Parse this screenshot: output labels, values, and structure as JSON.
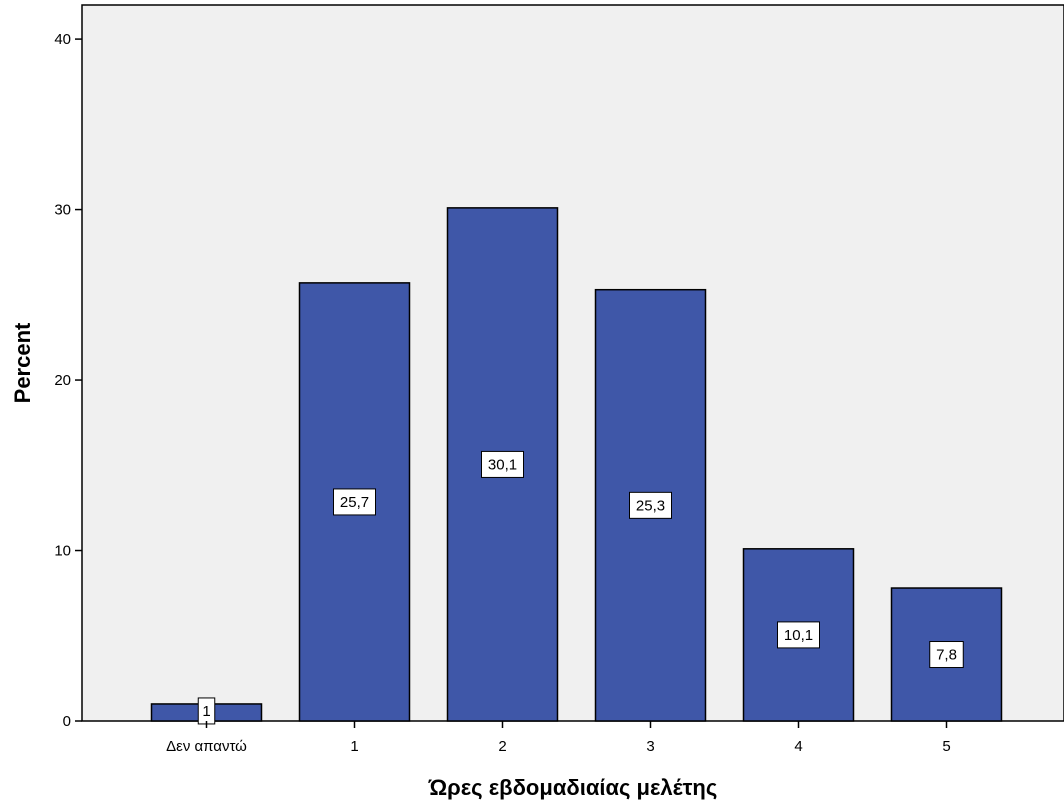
{
  "chart_data": {
    "type": "bar",
    "categories": [
      "Δεν απαντώ",
      "1",
      "2",
      "3",
      "4",
      "5"
    ],
    "values": [
      1,
      25.7,
      30.1,
      25.3,
      10.1,
      7.8
    ],
    "data_labels": [
      "1",
      "25,7",
      "30,1",
      "25,3",
      "10,1",
      "7,8"
    ],
    "xlabel": "Ώρες εβδομαδιαίας μελέτης",
    "ylabel": "Percent",
    "ylim": [
      0,
      42
    ],
    "yticks": [
      "0",
      "10",
      "20",
      "30",
      "40"
    ],
    "grid": false,
    "colors": {
      "bar_fill": "#3f57a8",
      "bar_stroke": "#000000",
      "plot_background": "#f0f0f0",
      "label_box": "#ffffff"
    }
  }
}
